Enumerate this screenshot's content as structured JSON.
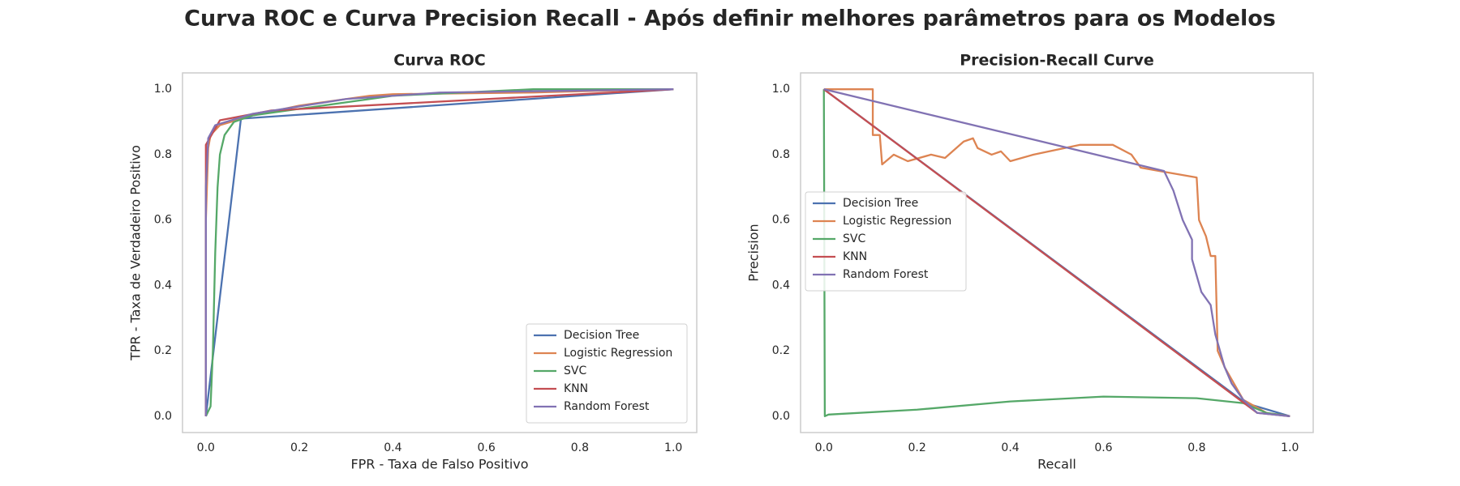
{
  "title": "Curva ROC e Curva Precision Recall - Após definir melhores parâmetros para os Modelos",
  "chart_data": [
    {
      "type": "line",
      "title": "Curva ROC",
      "xlabel": "FPR - Taxa de Falso Positivo",
      "ylabel": "TPR - Taxa de Verdadeiro Positivo",
      "xlim": [
        -0.05,
        1.05
      ],
      "ylim": [
        -0.05,
        1.05
      ],
      "xticks": [
        {
          "value": 0,
          "label": "0.0"
        },
        {
          "value": 0.2,
          "label": "0.2"
        },
        {
          "value": 0.4,
          "label": "0.4"
        },
        {
          "value": 0.6,
          "label": "0.6"
        },
        {
          "value": 0.8,
          "label": "0.8"
        },
        {
          "value": 1,
          "label": "1.0"
        }
      ],
      "yticks": [
        {
          "value": 0,
          "label": "0.0"
        },
        {
          "value": 0.2,
          "label": "0.2"
        },
        {
          "value": 0.4,
          "label": "0.4"
        },
        {
          "value": 0.6,
          "label": "0.6"
        },
        {
          "value": 0.8,
          "label": "0.8"
        },
        {
          "value": 1,
          "label": "1.0"
        }
      ],
      "grid": false,
      "legend": "lower-right",
      "series": [
        {
          "name": "Decision Tree",
          "color": "#4c72b0",
          "x": [
            0,
            0.075,
            1
          ],
          "values": [
            0,
            0.91,
            1
          ]
        },
        {
          "name": "Logistic Regression",
          "color": "#dd8452",
          "x": [
            0,
            0,
            0.005,
            0.01,
            0.03,
            0.1,
            0.2,
            0.3,
            0.35,
            0.4,
            0.7,
            0.83,
            1
          ],
          "values": [
            0,
            0.6,
            0.82,
            0.86,
            0.89,
            0.92,
            0.95,
            0.97,
            0.98,
            0.985,
            0.99,
            0.995,
            1
          ]
        },
        {
          "name": "SVC",
          "color": "#55a868",
          "x": [
            0,
            0.01,
            0.015,
            0.02,
            0.025,
            0.03,
            0.04,
            0.06,
            0.1,
            0.2,
            0.4,
            0.7,
            1
          ],
          "values": [
            0,
            0.03,
            0.2,
            0.5,
            0.7,
            0.8,
            0.86,
            0.9,
            0.92,
            0.94,
            0.98,
            1,
            1
          ]
        },
        {
          "name": "KNN",
          "color": "#c44e52",
          "x": [
            0,
            0,
            0.03,
            0.14,
            1
          ],
          "values": [
            0,
            0.83,
            0.905,
            0.935,
            1
          ]
        },
        {
          "name": "Random Forest",
          "color": "#8172b3",
          "x": [
            0,
            0,
            0.005,
            0.02,
            0.1,
            0.3,
            0.5,
            1
          ],
          "values": [
            0,
            0.7,
            0.85,
            0.89,
            0.925,
            0.97,
            0.99,
            1
          ]
        }
      ]
    },
    {
      "type": "line",
      "title": "Precision-Recall Curve",
      "xlabel": "Recall",
      "ylabel": "Precision",
      "xlim": [
        -0.05,
        1.05
      ],
      "ylim": [
        -0.05,
        1.05
      ],
      "xticks": [
        {
          "value": 0,
          "label": "0.0"
        },
        {
          "value": 0.2,
          "label": "0.2"
        },
        {
          "value": 0.4,
          "label": "0.4"
        },
        {
          "value": 0.6,
          "label": "0.6"
        },
        {
          "value": 0.8,
          "label": "0.8"
        },
        {
          "value": 1,
          "label": "1.0"
        }
      ],
      "yticks": [
        {
          "value": 0,
          "label": "0.0"
        },
        {
          "value": 0.2,
          "label": "0.2"
        },
        {
          "value": 0.4,
          "label": "0.4"
        },
        {
          "value": 0.6,
          "label": "0.6"
        },
        {
          "value": 0.8,
          "label": "0.8"
        },
        {
          "value": 1,
          "label": "1.0"
        }
      ],
      "grid": false,
      "legend": "center-left",
      "series": [
        {
          "name": "Decision Tree",
          "color": "#4c72b0",
          "x": [
            0,
            0.905,
            1
          ],
          "values": [
            1,
            0.04,
            0
          ]
        },
        {
          "name": "Logistic Regression",
          "color": "#dd8452",
          "x": [
            0,
            0.105,
            0.105,
            0.12,
            0.125,
            0.15,
            0.18,
            0.23,
            0.26,
            0.3,
            0.32,
            0.33,
            0.36,
            0.38,
            0.4,
            0.45,
            0.55,
            0.62,
            0.66,
            0.68,
            0.72,
            0.8,
            0.805,
            0.82,
            0.83,
            0.84,
            0.845,
            0.86,
            0.9,
            0.95,
            1
          ],
          "values": [
            1,
            1,
            0.86,
            0.86,
            0.77,
            0.8,
            0.78,
            0.8,
            0.79,
            0.84,
            0.85,
            0.82,
            0.8,
            0.81,
            0.78,
            0.8,
            0.83,
            0.83,
            0.8,
            0.76,
            0.75,
            0.73,
            0.6,
            0.55,
            0.49,
            0.49,
            0.2,
            0.15,
            0.05,
            0.01,
            0
          ]
        },
        {
          "name": "SVC",
          "color": "#55a868",
          "x": [
            0,
            0.002,
            0.01,
            0.2,
            0.4,
            0.6,
            0.8,
            0.9,
            0.95,
            1
          ],
          "values": [
            1,
            0,
            0.005,
            0.02,
            0.045,
            0.06,
            0.055,
            0.04,
            0.01,
            0
          ]
        },
        {
          "name": "KNN",
          "color": "#c44e52",
          "x": [
            0,
            0.93,
            1
          ],
          "values": [
            1,
            0.01,
            0
          ]
        },
        {
          "name": "Random Forest",
          "color": "#8172b3",
          "x": [
            0,
            0.73,
            0.75,
            0.77,
            0.79,
            0.79,
            0.8,
            0.81,
            0.83,
            0.84,
            0.86,
            0.875,
            0.9,
            0.93,
            1
          ],
          "values": [
            1,
            0.75,
            0.69,
            0.6,
            0.54,
            0.48,
            0.43,
            0.38,
            0.34,
            0.25,
            0.15,
            0.1,
            0.05,
            0.01,
            0
          ]
        }
      ]
    }
  ]
}
